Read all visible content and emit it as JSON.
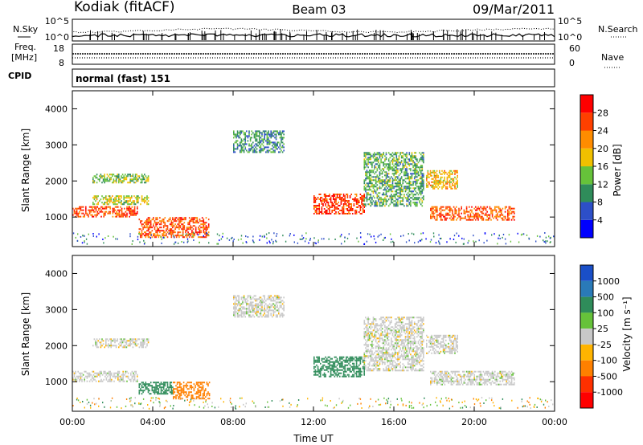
{
  "header": {
    "station": "Kodiak (fitACF)",
    "beam": "Beam 03",
    "date": "09/Mar/2011"
  },
  "top_panel": {
    "left_label": "N.Sky",
    "right_label": "N.Search",
    "left_ticks": [
      "10^5",
      "10^0"
    ],
    "right_ticks": [
      "10^5",
      "10^0"
    ]
  },
  "freq_panel": {
    "left_label_1": "Freq.",
    "left_label_2": "[MHz]",
    "left_ticks": [
      "18",
      "8"
    ],
    "right_ticks": [
      "60",
      "0"
    ],
    "right_label": "Nave"
  },
  "cpid": {
    "label": "CPID",
    "value": "normal (fast) 151"
  },
  "chart_data": [
    {
      "type": "heatmap",
      "name": "Power",
      "ylabel": "Slant Range [km]",
      "ylim": [
        180,
        4500
      ],
      "yticks": [
        "1000",
        "2000",
        "3000",
        "4000"
      ],
      "xlim": [
        0,
        24
      ],
      "colorbar_label": "Power [dB]",
      "colorbar_ticks": [
        "4",
        "8",
        "12",
        "16",
        "20",
        "24",
        "28"
      ],
      "colorbar_colors": [
        "#0000ff",
        "#2d4fc8",
        "#2f8c5a",
        "#66c23a",
        "#f0c000",
        "#ff8c00",
        "#ff4000",
        "#ff0000"
      ],
      "regions": [
        {
          "t0": 0.0,
          "t1": 3.2,
          "r0": 1000,
          "r1": 1300,
          "v": 26
        },
        {
          "t0": 1.0,
          "t1": 3.8,
          "r0": 1350,
          "r1": 1600,
          "v": 16
        },
        {
          "t0": 1.0,
          "t1": 3.8,
          "r0": 1950,
          "r1": 2200,
          "v": 14
        },
        {
          "t0": 3.3,
          "t1": 6.8,
          "r0": 450,
          "r1": 1000,
          "v": 25
        },
        {
          "t0": 8.0,
          "t1": 10.5,
          "r0": 2800,
          "r1": 3400,
          "v": 10
        },
        {
          "t0": 12.0,
          "t1": 14.5,
          "r0": 1100,
          "r1": 1650,
          "v": 27
        },
        {
          "t0": 14.5,
          "t1": 17.5,
          "r0": 1300,
          "r1": 2800,
          "v": 12
        },
        {
          "t0": 17.6,
          "t1": 19.2,
          "r0": 1800,
          "r1": 2300,
          "v": 20
        },
        {
          "t0": 17.8,
          "t1": 22.0,
          "r0": 900,
          "r1": 1300,
          "v": 25
        }
      ]
    },
    {
      "type": "heatmap",
      "name": "Velocity",
      "ylabel": "Slant Range [km]",
      "xlabel": "Time UT",
      "ylim": [
        180,
        4500
      ],
      "yticks": [
        "1000",
        "2000",
        "3000",
        "4000"
      ],
      "xlim": [
        0,
        24
      ],
      "xticks": [
        "00:00",
        "04:00",
        "08:00",
        "12:00",
        "16:00",
        "20:00",
        "00:00"
      ],
      "colorbar_label": "Velocity [m s⁻¹]",
      "colorbar_ticks": [
        "1000",
        "500",
        "100",
        "25",
        "-25",
        "-100",
        "-500",
        "-1000"
      ],
      "colorbar_colors": [
        "#1a4fc8",
        "#2a7ab8",
        "#2f8c5a",
        "#66c23a",
        "#c8c8c8",
        "#ffb400",
        "#ff8000",
        "#ff3000",
        "#ff0000"
      ],
      "regions": [
        {
          "t0": 0.0,
          "t1": 3.2,
          "r0": 1000,
          "r1": 1300,
          "v": 0
        },
        {
          "t0": 1.0,
          "t1": 3.8,
          "r0": 1950,
          "r1": 2200,
          "v": 0
        },
        {
          "t0": 3.3,
          "t1": 5.0,
          "r0": 650,
          "r1": 1000,
          "v": 150
        },
        {
          "t0": 5.0,
          "t1": 6.8,
          "r0": 550,
          "r1": 1000,
          "v": -150
        },
        {
          "t0": 8.0,
          "t1": 10.5,
          "r0": 2800,
          "r1": 3400,
          "v": 0
        },
        {
          "t0": 12.0,
          "t1": 14.5,
          "r0": 1150,
          "r1": 1700,
          "v": 150
        },
        {
          "t0": 14.5,
          "t1": 17.5,
          "r0": 1300,
          "r1": 2800,
          "v": 0
        },
        {
          "t0": 17.6,
          "t1": 19.2,
          "r0": 1800,
          "r1": 2300,
          "v": 0
        },
        {
          "t0": 17.8,
          "t1": 22.0,
          "r0": 900,
          "r1": 1300,
          "v": 0
        }
      ]
    }
  ]
}
